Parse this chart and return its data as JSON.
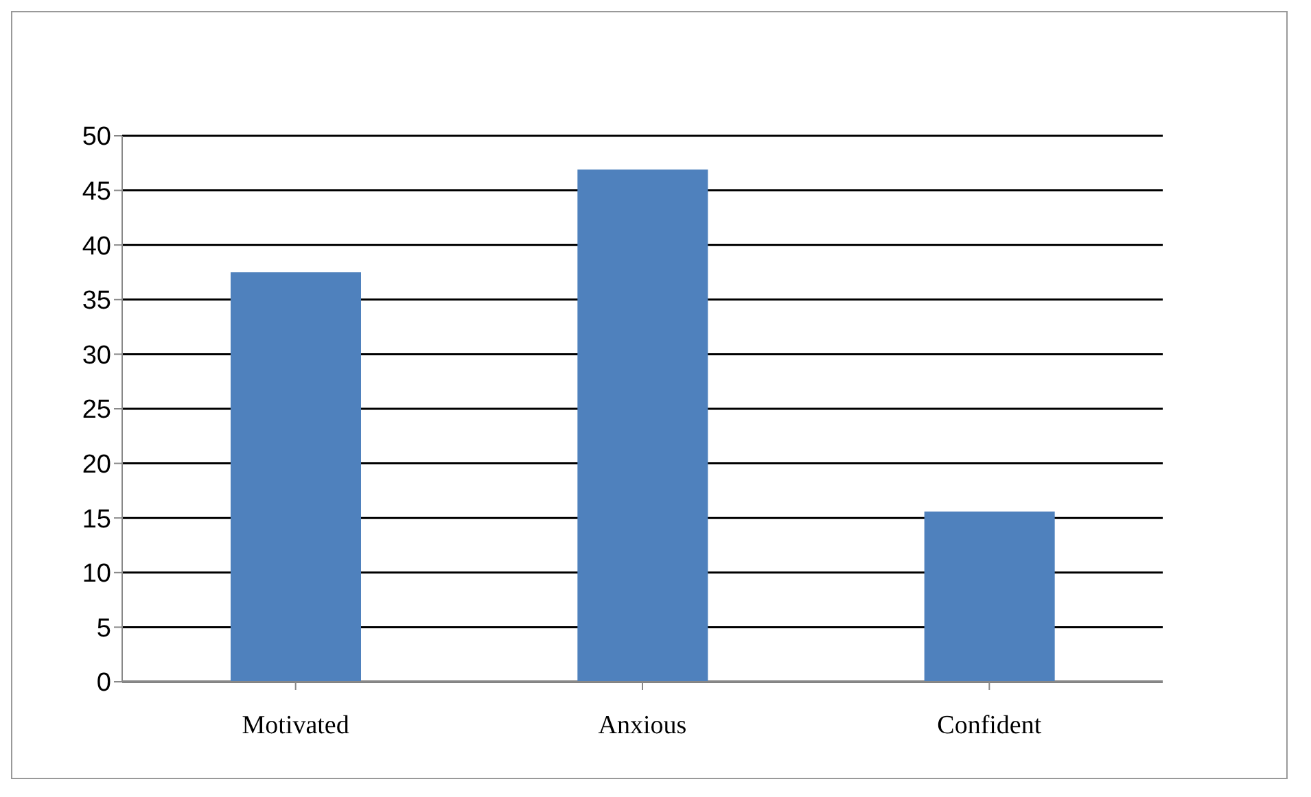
{
  "chart_data": {
    "type": "bar",
    "categories": [
      "Motivated",
      "Anxious",
      "Confident"
    ],
    "values": [
      37.5,
      46.9,
      15.6
    ],
    "color": "#4f81bd",
    "ylim": [
      0,
      50
    ],
    "yticks": [
      0,
      5,
      10,
      15,
      20,
      25,
      30,
      35,
      40,
      45,
      50
    ],
    "grid": "y"
  }
}
